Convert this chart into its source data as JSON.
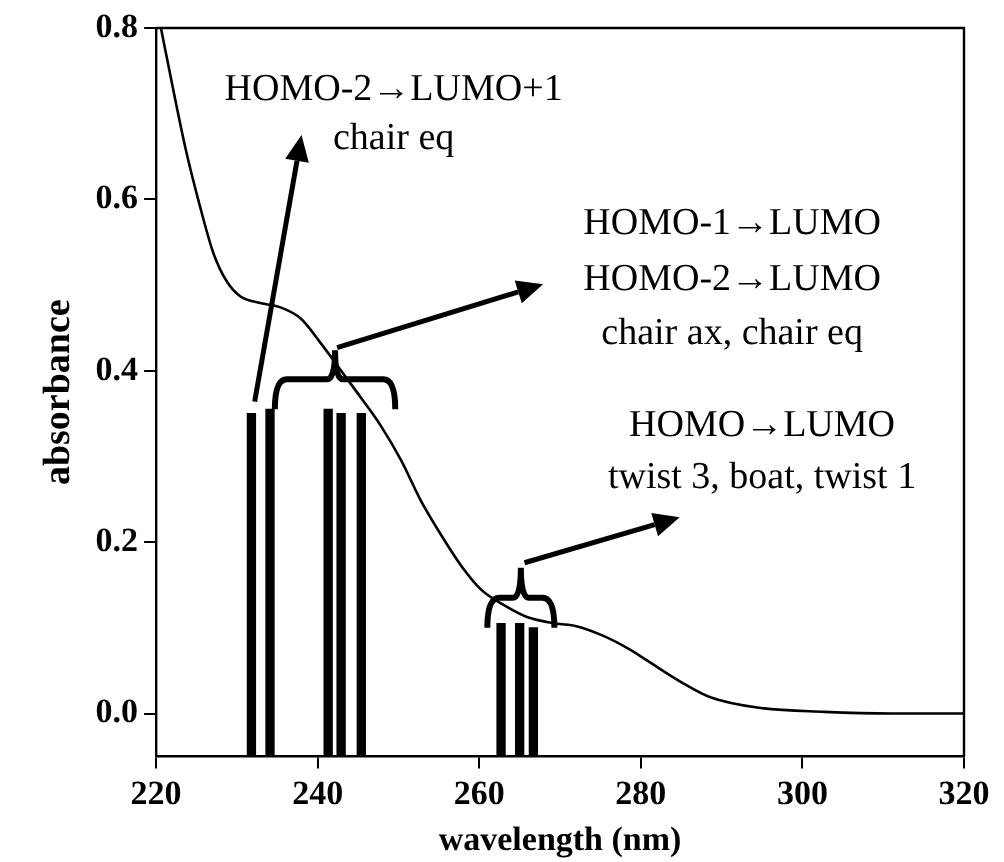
{
  "chart_data": {
    "type": "line",
    "xlabel": "wavelength (nm)",
    "ylabel": "absorbance",
    "xlim": [
      220,
      320
    ],
    "xticks": [
      220,
      240,
      260,
      280,
      300,
      320
    ],
    "ylim": [
      -0.05,
      0.8
    ],
    "yticks": [
      {
        "value": 0,
        "label": "0.0"
      },
      {
        "value": 0.2,
        "label": "0.2"
      },
      {
        "value": 0.4,
        "label": "0.4"
      },
      {
        "value": 0.6,
        "label": "0.6"
      },
      {
        "value": 0.8,
        "label": "0.8"
      }
    ],
    "grid": false,
    "legend": false,
    "marker": "none",
    "line_style": "solid",
    "annotations": [
      "HOMO-2→LUMO+1",
      "chair eq",
      "HOMO-1→LUMO",
      "HOMO-2→LUMO",
      "chair ax, chair eq",
      "HOMO→LUMO",
      "twist 3, boat, twist 1"
    ],
    "series": [
      {
        "color": "#000000",
        "x": [
          220.6,
          222.1,
          223.7,
          225.4,
          227.1,
          228.7,
          230.4,
          232.9,
          235.4,
          237.9,
          240.4,
          242.9,
          245.4,
          247.8,
          250.3,
          252.8,
          255.3,
          257.8,
          260.3,
          262.8,
          266.1,
          269.5,
          272,
          275.3,
          278.6,
          281.9,
          285.3,
          288.6,
          294.4,
          302.7,
          311,
          320
        ],
        "values": [
          0.8,
          0.729,
          0.657,
          0.593,
          0.537,
          0.505,
          0.487,
          0.479,
          0.474,
          0.461,
          0.432,
          0.4,
          0.368,
          0.336,
          0.296,
          0.248,
          0.208,
          0.172,
          0.144,
          0.128,
          0.112,
          0.105,
          0.102,
          0.091,
          0.075,
          0.055,
          0.035,
          0.019,
          0.007,
          0.002,
          0,
          0
        ]
      },
      {
        "type": "bar",
        "color": "#000000",
        "x": [
          231.8,
          234.1,
          241.3,
          242.9,
          245.4,
          262.7,
          265,
          266.7
        ],
        "base": [
          -0.05,
          -0.05,
          -0.05,
          -0.05,
          -0.05,
          -0.05,
          -0.05,
          -0.05
        ],
        "values": [
          0.4,
          0.405,
          0.405,
          0.4,
          0.4,
          0.155,
          0.155,
          0.15
        ]
      }
    ]
  }
}
